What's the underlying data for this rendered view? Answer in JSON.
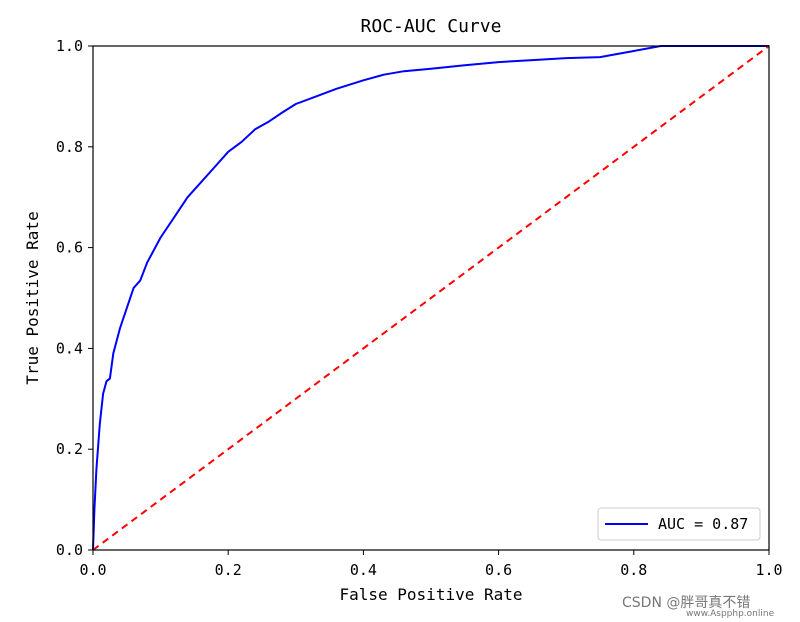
{
  "chart_data": {
    "type": "line",
    "title": "ROC-AUC Curve",
    "xlabel": "False Positive Rate",
    "ylabel": "True Positive Rate",
    "xlim": [
      0.0,
      1.0
    ],
    "ylim": [
      0.0,
      1.0
    ],
    "x_ticks": [
      "0.0",
      "0.2",
      "0.4",
      "0.6",
      "0.8",
      "1.0"
    ],
    "y_ticks": [
      "0.0",
      "0.2",
      "0.4",
      "0.6",
      "0.8",
      "1.0"
    ],
    "grid": false,
    "legend_position": "lower-right",
    "series": [
      {
        "name": "AUC = 0.87",
        "color": "#0000ff",
        "line_style": "solid",
        "x": [
          0.0,
          0.002,
          0.005,
          0.01,
          0.015,
          0.02,
          0.025,
          0.03,
          0.04,
          0.05,
          0.06,
          0.07,
          0.08,
          0.1,
          0.12,
          0.14,
          0.16,
          0.18,
          0.2,
          0.22,
          0.24,
          0.26,
          0.28,
          0.3,
          0.33,
          0.36,
          0.4,
          0.43,
          0.46,
          0.5,
          0.55,
          0.6,
          0.65,
          0.7,
          0.75,
          0.8,
          0.84,
          0.88,
          0.92,
          0.96,
          1.0
        ],
        "y": [
          0.0,
          0.08,
          0.16,
          0.25,
          0.31,
          0.335,
          0.34,
          0.39,
          0.44,
          0.48,
          0.52,
          0.535,
          0.57,
          0.62,
          0.66,
          0.7,
          0.73,
          0.76,
          0.79,
          0.81,
          0.835,
          0.85,
          0.868,
          0.885,
          0.9,
          0.915,
          0.932,
          0.943,
          0.95,
          0.955,
          0.962,
          0.968,
          0.972,
          0.976,
          0.978,
          0.99,
          1.0,
          1.0,
          1.0,
          1.0,
          1.0
        ]
      },
      {
        "name": "",
        "color": "#ff0000",
        "line_style": "dashed",
        "x": [
          0.0,
          1.0
        ],
        "y": [
          0.0,
          1.0
        ]
      }
    ]
  },
  "watermark": {
    "text": "CSDN @胖哥真不错",
    "subtext": "www.Aspphp.online"
  }
}
